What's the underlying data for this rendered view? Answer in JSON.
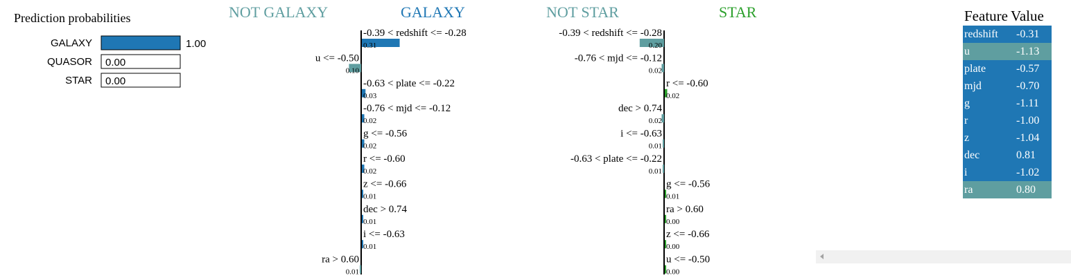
{
  "prediction": {
    "title": "Prediction probabilities",
    "rows": [
      {
        "label": "GALAXY",
        "value": 1.0,
        "display": "1.00",
        "color": "#1f77b4"
      },
      {
        "label": "QUASOR",
        "value": 0.0,
        "display": "0.00",
        "color": "#1f77b4"
      },
      {
        "label": "STAR",
        "value": 0.0,
        "display": "0.00",
        "color": "#1f77b4"
      }
    ]
  },
  "chart_data": [
    {
      "type": "bar",
      "neg_label": "NOT GALAXY",
      "pos_label": "GALAXY",
      "neg_color": "#5f9ea0",
      "pos_color": "#1f77b4",
      "rows": [
        {
          "label": "-0.39 < redshift <= -0.28",
          "value": 0.31,
          "display": "0.31"
        },
        {
          "label": "u <= -0.50",
          "value": -0.1,
          "display": "0.10"
        },
        {
          "label": "-0.63 < plate <= -0.22",
          "value": 0.03,
          "display": "0.03"
        },
        {
          "label": "-0.76 < mjd <= -0.12",
          "value": 0.02,
          "display": "0.02"
        },
        {
          "label": "g <= -0.56",
          "value": 0.02,
          "display": "0.02"
        },
        {
          "label": "r <= -0.60",
          "value": 0.02,
          "display": "0.02"
        },
        {
          "label": "z <= -0.66",
          "value": 0.01,
          "display": "0.01"
        },
        {
          "label": "dec > 0.74",
          "value": 0.01,
          "display": "0.01"
        },
        {
          "label": "i <= -0.63",
          "value": 0.01,
          "display": "0.01"
        },
        {
          "label": "ra > 0.60",
          "value": -0.01,
          "display": "0.01"
        }
      ]
    },
    {
      "type": "bar",
      "neg_label": "NOT STAR",
      "pos_label": "STAR",
      "neg_color": "#5f9ea0",
      "pos_color": "#2ca02c",
      "rows": [
        {
          "label": "-0.39 < redshift <= -0.28",
          "value": -0.2,
          "display": "0.20"
        },
        {
          "label": "-0.76 < mjd <= -0.12",
          "value": -0.02,
          "display": "0.02"
        },
        {
          "label": "r <= -0.60",
          "value": 0.02,
          "display": "0.02"
        },
        {
          "label": "dec > 0.74",
          "value": -0.02,
          "display": "0.02"
        },
        {
          "label": "i <= -0.63",
          "value": -0.01,
          "display": "0.01"
        },
        {
          "label": "-0.63 < plate <= -0.22",
          "value": -0.01,
          "display": "0.01"
        },
        {
          "label": "g <= -0.56",
          "value": 0.01,
          "display": "0.01"
        },
        {
          "label": "ra > 0.60",
          "value": -0.0,
          "display": "0.00"
        },
        {
          "label": "z <= -0.66",
          "value": -0.0,
          "display": "0.00"
        },
        {
          "label": "u <= -0.50",
          "value": 0.0,
          "display": "0.00"
        }
      ]
    }
  ],
  "feature_table": {
    "headers": [
      "Feature",
      "Value"
    ],
    "rows": [
      {
        "feature": "redshift",
        "value": "-0.31",
        "color": "#1f77b4"
      },
      {
        "feature": "u",
        "value": "-1.13",
        "color": "#5f9ea0"
      },
      {
        "feature": "plate",
        "value": "-0.57",
        "color": "#1f77b4"
      },
      {
        "feature": "mjd",
        "value": "-0.70",
        "color": "#1f77b4"
      },
      {
        "feature": "g",
        "value": "-1.11",
        "color": "#1f77b4"
      },
      {
        "feature": "r",
        "value": "-1.00",
        "color": "#1f77b4"
      },
      {
        "feature": "z",
        "value": "-1.04",
        "color": "#1f77b4"
      },
      {
        "feature": "dec",
        "value": "0.81",
        "color": "#1f77b4"
      },
      {
        "feature": "i",
        "value": "-1.02",
        "color": "#1f77b4"
      },
      {
        "feature": "ra",
        "value": "0.80",
        "color": "#5f9ea0"
      }
    ]
  }
}
